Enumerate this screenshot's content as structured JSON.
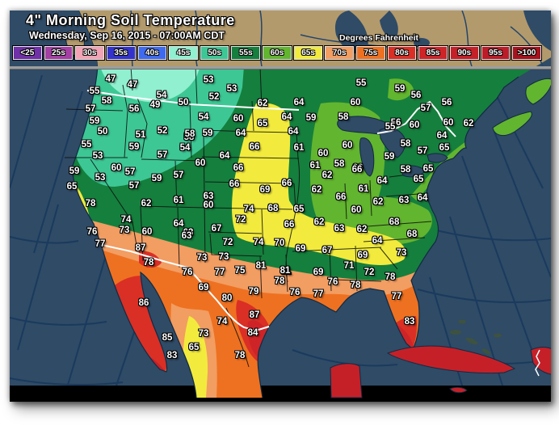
{
  "header": {
    "title": "4\" Morning Soil Temperature",
    "subtitle": "Wednesday, Sep 16, 2015 - 07:00AM CDT",
    "units_label": "Degrees Fahrenheit"
  },
  "legend": {
    "items": [
      {
        "label": "<25",
        "color": "#7030A8"
      },
      {
        "label": "25s",
        "color": "#A43FA4"
      },
      {
        "label": "30s",
        "color": "#F2A3B5"
      },
      {
        "label": "35s",
        "color": "#3333CC"
      },
      {
        "label": "40s",
        "color": "#3E6AF0"
      },
      {
        "label": "45s",
        "color": "#90F0CF"
      },
      {
        "label": "50s",
        "color": "#3DC795"
      },
      {
        "label": "55s",
        "color": "#157F3D"
      },
      {
        "label": "60s",
        "color": "#62B52F"
      },
      {
        "label": "65s",
        "color": "#F2EB3D"
      },
      {
        "label": "70s",
        "color": "#F29D62"
      },
      {
        "label": "75s",
        "color": "#EE7121"
      },
      {
        "label": "80s",
        "color": "#DA2F25"
      },
      {
        "label": "85s",
        "color": "#CE2428"
      },
      {
        "label": "90s",
        "color": "#C52028"
      },
      {
        "label": "95s",
        "color": "#BC1C27"
      },
      {
        "label": ">100",
        "color": "#A5131C"
      }
    ]
  },
  "map": {
    "colors": {
      "ocean": "#2F4B66",
      "ocean_grid": "#1A3A5E",
      "land_tan": "#B39A6C",
      "tan_line": "#23456B",
      "divider": "#9E9E9E",
      "bottom_bar": "#000000",
      "island_dark": "#3E5240",
      "border_white": "#FFFFFF",
      "state_line": "#0D0D0D"
    },
    "stations": [
      [
        47,
        137,
        98
      ],
      [
        47,
        164,
        105
      ],
      [
        55,
        117,
        113
      ],
      [
        58,
        132,
        125
      ],
      [
        54,
        200,
        118
      ],
      [
        50,
        227,
        127
      ],
      [
        57,
        112,
        135
      ],
      [
        56,
        166,
        135
      ],
      [
        49,
        192,
        130
      ],
      [
        59,
        117,
        150
      ],
      [
        50,
        127,
        163
      ],
      [
        52,
        201,
        162
      ],
      [
        51,
        174,
        167
      ],
      [
        58,
        234,
        170
      ],
      [
        55,
        107,
        179
      ],
      [
        59,
        166,
        182
      ],
      [
        54,
        229,
        183
      ],
      [
        57,
        201,
        192
      ],
      [
        53,
        121,
        193
      ],
      [
        59,
        92,
        212
      ],
      [
        60,
        144,
        208
      ],
      [
        57,
        161,
        213
      ],
      [
        53,
        124,
        220
      ],
      [
        59,
        194,
        221
      ],
      [
        57,
        221,
        217
      ],
      [
        65,
        89,
        231
      ],
      [
        57,
        166,
        230
      ],
      [
        53,
        258,
        99
      ],
      [
        53,
        287,
        110
      ],
      [
        52,
        265,
        120
      ],
      [
        62,
        325,
        128
      ],
      [
        64,
        370,
        127
      ],
      [
        55,
        447,
        103
      ],
      [
        60,
        440,
        127
      ],
      [
        54,
        252,
        145
      ],
      [
        60,
        295,
        147
      ],
      [
        64,
        355,
        145
      ],
      [
        59,
        385,
        146
      ],
      [
        58,
        425,
        145
      ],
      [
        65,
        325,
        153
      ],
      [
        58,
        235,
        166
      ],
      [
        59,
        257,
        165
      ],
      [
        64,
        298,
        165
      ],
      [
        64,
        363,
        163
      ],
      [
        66,
        315,
        182
      ],
      [
        60,
        430,
        180
      ],
      [
        64,
        278,
        193
      ],
      [
        61,
        370,
        183
      ],
      [
        60,
        400,
        190
      ],
      [
        60,
        248,
        202
      ],
      [
        66,
        295,
        208
      ],
      [
        61,
        390,
        205
      ],
      [
        58,
        420,
        203
      ],
      [
        66,
        443,
        208
      ],
      [
        62,
        405,
        217
      ],
      [
        66,
        355,
        227
      ],
      [
        66,
        290,
        228
      ],
      [
        59,
        495,
        110
      ],
      [
        56,
        515,
        118
      ],
      [
        57,
        527,
        134
      ],
      [
        56,
        553,
        127
      ],
      [
        56,
        490,
        152
      ],
      [
        55,
        483,
        157
      ],
      [
        60,
        513,
        155
      ],
      [
        60,
        555,
        152
      ],
      [
        62,
        580,
        153
      ],
      [
        64,
        547,
        168
      ],
      [
        58,
        502,
        178
      ],
      [
        57,
        523,
        187
      ],
      [
        65,
        550,
        183
      ],
      [
        59,
        482,
        194
      ],
      [
        66,
        442,
        210
      ],
      [
        58,
        502,
        210
      ],
      [
        65,
        530,
        209
      ],
      [
        64,
        473,
        224
      ],
      [
        65,
        518,
        222
      ],
      [
        61,
        450,
        234
      ],
      [
        62,
        468,
        250
      ],
      [
        63,
        500,
        248
      ],
      [
        64,
        523,
        245
      ],
      [
        60,
        441,
        260
      ],
      [
        68,
        488,
        275
      ],
      [
        62,
        448,
        284
      ],
      [
        64,
        467,
        298
      ],
      [
        68,
        510,
        290
      ],
      [
        63,
        420,
        283
      ],
      [
        73,
        497,
        313
      ],
      [
        72,
        457,
        337
      ],
      [
        71,
        432,
        329
      ],
      [
        78,
        483,
        343
      ],
      [
        77,
        491,
        367
      ],
      [
        83,
        507,
        398
      ],
      [
        69,
        449,
        316
      ],
      [
        67,
        405,
        310
      ],
      [
        69,
        394,
        337
      ],
      [
        76,
        412,
        349
      ],
      [
        78,
        440,
        353
      ],
      [
        77,
        394,
        364
      ],
      [
        76,
        365,
        362
      ],
      [
        78,
        346,
        348
      ],
      [
        81,
        354,
        336
      ],
      [
        69,
        372,
        308
      ],
      [
        70,
        346,
        301
      ],
      [
        63,
        258,
        243
      ],
      [
        60,
        258,
        254
      ],
      [
        69,
        328,
        235
      ],
      [
        62,
        392,
        235
      ],
      [
        66,
        422,
        244
      ],
      [
        74,
        308,
        259
      ],
      [
        68,
        338,
        258
      ],
      [
        65,
        370,
        259
      ],
      [
        72,
        298,
        272
      ],
      [
        66,
        358,
        278
      ],
      [
        62,
        395,
        275
      ],
      [
        67,
        268,
        283
      ],
      [
        63,
        233,
        288
      ],
      [
        72,
        282,
        300
      ],
      [
        74,
        320,
        300
      ],
      [
        73,
        250,
        319
      ],
      [
        73,
        277,
        318
      ],
      [
        77,
        272,
        337
      ],
      [
        75,
        297,
        335
      ],
      [
        81,
        323,
        329
      ],
      [
        81,
        353,
        335
      ],
      [
        69,
        252,
        356
      ],
      [
        80,
        281,
        369
      ],
      [
        79,
        314,
        361
      ],
      [
        74,
        275,
        398
      ],
      [
        87,
        315,
        390
      ],
      [
        84,
        313,
        412
      ],
      [
        62,
        181,
        252
      ],
      [
        61,
        221,
        248
      ],
      [
        78,
        112,
        252
      ],
      [
        74,
        156,
        272
      ],
      [
        64,
        221,
        277
      ],
      [
        73,
        154,
        285
      ],
      [
        60,
        182,
        287
      ],
      [
        63,
        231,
        292
      ],
      [
        76,
        114,
        287
      ],
      [
        77,
        124,
        302
      ],
      [
        87,
        174,
        307
      ],
      [
        78,
        184,
        325
      ],
      [
        76,
        232,
        337
      ],
      [
        86,
        178,
        375
      ],
      [
        85,
        207,
        418
      ],
      [
        83,
        213,
        440
      ],
      [
        65,
        240,
        430
      ],
      [
        73,
        252,
        413
      ],
      [
        78,
        297,
        440
      ]
    ]
  }
}
